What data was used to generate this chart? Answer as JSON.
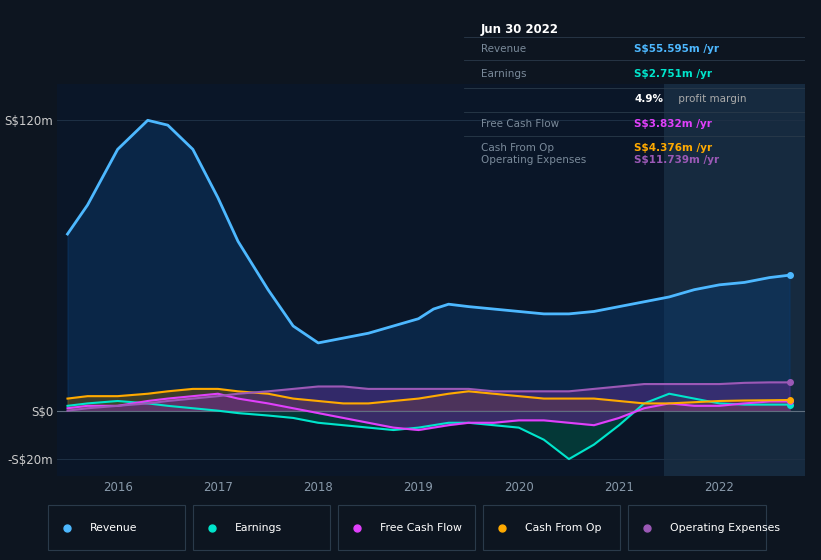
{
  "bg_color": "#0d1520",
  "plot_bg_color": "#0a1628",
  "highlight_bg": "#162a3f",
  "revenue_color": "#4db8ff",
  "earnings_color": "#00e5cc",
  "fcf_color": "#e040fb",
  "cashop_color": "#ffaa00",
  "opex_color": "#9b59b6",
  "info_box": {
    "date": "Jun 30 2022",
    "revenue_val": "S$55.595m",
    "earnings_val": "S$2.751m",
    "profit_margin": "4.9%",
    "fcf_val": "S$3.832m",
    "cashop_val": "S$4.376m",
    "opex_val": "S$11.739m"
  },
  "xlim_start": 2015.4,
  "xlim_end": 2022.85,
  "ylim_min": -27,
  "ylim_max": 135,
  "highlight_x_start": 2021.45,
  "highlight_x_end": 2022.85,
  "x": [
    2015.5,
    2015.7,
    2016.0,
    2016.3,
    2016.5,
    2016.75,
    2017.0,
    2017.2,
    2017.5,
    2017.75,
    2018.0,
    2018.25,
    2018.5,
    2018.75,
    2019.0,
    2019.15,
    2019.3,
    2019.5,
    2019.75,
    2020.0,
    2020.25,
    2020.5,
    2020.75,
    2021.0,
    2021.25,
    2021.5,
    2021.75,
    2022.0,
    2022.25,
    2022.5,
    2022.7
  ],
  "y_revenue": [
    73,
    85,
    108,
    120,
    118,
    108,
    88,
    70,
    50,
    35,
    28,
    30,
    32,
    35,
    38,
    42,
    44,
    43,
    42,
    41,
    40,
    40,
    41,
    43,
    45,
    47,
    50,
    52,
    53,
    55,
    56
  ],
  "y_earnings": [
    2,
    3,
    4,
    3,
    2,
    1,
    0,
    -1,
    -2,
    -3,
    -5,
    -6,
    -7,
    -8,
    -7,
    -6,
    -5,
    -5,
    -6,
    -7,
    -12,
    -20,
    -14,
    -6,
    3,
    7,
    5,
    3,
    2.5,
    2.5,
    2.5
  ],
  "y_fcf": [
    1,
    2,
    2,
    4,
    5,
    6,
    7,
    5,
    3,
    1,
    -1,
    -3,
    -5,
    -7,
    -8,
    -7,
    -6,
    -5,
    -5,
    -4,
    -4,
    -5,
    -6,
    -3,
    1,
    3,
    2,
    2,
    3,
    3.8,
    3.8
  ],
  "y_cashop": [
    5,
    6,
    6,
    7,
    8,
    9,
    9,
    8,
    7,
    5,
    4,
    3,
    3,
    4,
    5,
    6,
    7,
    8,
    7,
    6,
    5,
    5,
    5,
    4,
    3,
    3,
    3.5,
    4,
    4.2,
    4.3,
    4.4
  ],
  "y_opex": [
    0,
    1,
    2,
    3,
    4,
    5,
    6,
    7,
    8,
    9,
    10,
    10,
    9,
    9,
    9,
    9,
    9,
    9,
    8,
    8,
    8,
    8,
    9,
    10,
    11,
    11,
    11,
    11,
    11.5,
    11.7,
    11.7
  ]
}
